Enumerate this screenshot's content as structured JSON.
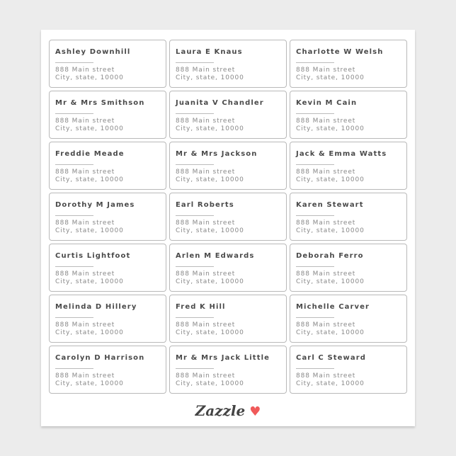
{
  "labels": [
    {
      "name": "Ashley Downhill",
      "line1": "888 Main street",
      "line2": "City, state, 10000"
    },
    {
      "name": "Laura E Knaus",
      "line1": "888 Main street",
      "line2": "City, state, 10000"
    },
    {
      "name": "Charlotte W Welsh",
      "line1": "888 Main street",
      "line2": "City, state, 10000"
    },
    {
      "name": "Mr & Mrs Smithson",
      "line1": "888 Main street",
      "line2": "City, state, 10000"
    },
    {
      "name": "Juanita V Chandler",
      "line1": "888 Main street",
      "line2": "City, state, 10000"
    },
    {
      "name": "Kevin M Cain",
      "line1": "888 Main street",
      "line2": "City, state, 10000"
    },
    {
      "name": "Freddie Meade",
      "line1": "888 Main street",
      "line2": "City, state, 10000"
    },
    {
      "name": "Mr & Mrs Jackson",
      "line1": "888 Main street",
      "line2": "City, state, 10000"
    },
    {
      "name": "Jack & Emma Watts",
      "line1": "888 Main street",
      "line2": "City, state, 10000"
    },
    {
      "name": "Dorothy M James",
      "line1": "888 Main street",
      "line2": "City, state, 10000"
    },
    {
      "name": "Earl Roberts",
      "line1": "888 Main street",
      "line2": "City, state, 10000"
    },
    {
      "name": "Karen Stewart",
      "line1": "888 Main street",
      "line2": "City, state, 10000"
    },
    {
      "name": "Curtis Lightfoot",
      "line1": "888 Main street",
      "line2": "City, state, 10000"
    },
    {
      "name": "Arlen M Edwards",
      "line1": "888 Main street",
      "line2": "City, state, 10000"
    },
    {
      "name": "Deborah Ferro",
      "line1": "888 Main street",
      "line2": "City, state, 10000"
    },
    {
      "name": "Melinda D Hillery",
      "line1": "888 Main street",
      "line2": "City, state, 10000"
    },
    {
      "name": "Fred K Hill",
      "line1": "888 Main street",
      "line2": "City, state, 10000"
    },
    {
      "name": "Michelle Carver",
      "line1": "888 Main street",
      "line2": "City, state, 10000"
    },
    {
      "name": "Carolyn D Harrison",
      "line1": "888 Main street",
      "line2": "City, state, 10000"
    },
    {
      "name": "Mr & Mrs Jack Little",
      "line1": "888 Main street",
      "line2": "City, state, 10000"
    },
    {
      "name": "Carl C Steward",
      "line1": "888 Main street",
      "line2": "City, state, 10000"
    }
  ],
  "brand": {
    "name": "Zazzle",
    "icon": "heart-icon",
    "heart_color": "#f05a5a"
  }
}
